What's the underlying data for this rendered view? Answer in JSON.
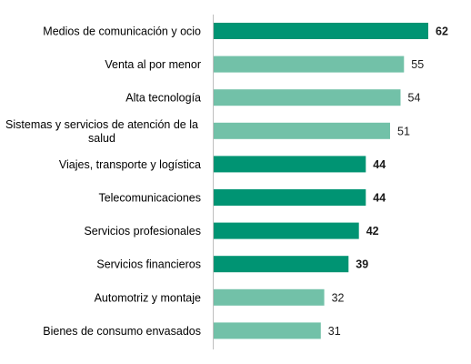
{
  "chart_data": {
    "type": "bar",
    "orientation": "horizontal",
    "categories": [
      "Medios de comunicación y ocio",
      "Venta al por menor",
      "Alta tecnología",
      "Sistemas y servicios de atención de la salud",
      "Viajes, transporte y logística",
      "Telecomunicaciones",
      "Servicios profesionales",
      "Servicios financieros",
      "Automotriz y montaje",
      "Bienes de consumo envasados"
    ],
    "category_lines": [
      [
        "Medios de comunicación y ocio"
      ],
      [
        "Venta al por menor"
      ],
      [
        "Alta tecnología"
      ],
      [
        "Sistemas y servicios de atención de la",
        "salud"
      ],
      [
        "Viajes, transporte y logística"
      ],
      [
        "Telecomunicaciones"
      ],
      [
        "Servicios profesionales"
      ],
      [
        "Servicios financieros"
      ],
      [
        "Automotriz y montaje"
      ],
      [
        "Bienes de consumo envasados"
      ]
    ],
    "values": [
      62,
      55,
      54,
      51,
      44,
      44,
      42,
      39,
      32,
      31
    ],
    "highlighted": [
      true,
      false,
      false,
      false,
      true,
      true,
      true,
      true,
      false,
      false
    ],
    "title": "",
    "xlabel": "",
    "ylabel": "",
    "xlim": [
      0,
      62
    ],
    "grid": false,
    "data_labels": true,
    "colors": {
      "highlight": "#009473",
      "normal": "#72c1a8",
      "axis": "#bfbfbf",
      "label_text": "#000000",
      "value_text": "#1a1a1a"
    }
  }
}
